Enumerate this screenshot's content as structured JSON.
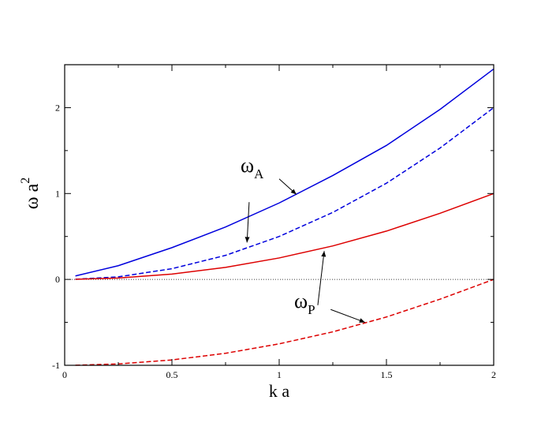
{
  "chart_data": {
    "type": "line",
    "title": "",
    "xlabel": "k a",
    "ylabel": {
      "main": "ω a",
      "sup": "2"
    },
    "xlim": [
      0,
      2
    ],
    "ylim": [
      -1,
      2.5
    ],
    "x_ticks": [
      {
        "value": 0,
        "label": "0"
      },
      {
        "value": 0.5,
        "label": "0.5"
      },
      {
        "value": 1,
        "label": "1"
      },
      {
        "value": 1.5,
        "label": "1.5"
      },
      {
        "value": 2,
        "label": "2"
      }
    ],
    "y_ticks": [
      {
        "value": -1,
        "label": "-1"
      },
      {
        "value": 0,
        "label": "0"
      },
      {
        "value": 1,
        "label": "1"
      },
      {
        "value": 2,
        "label": "2"
      }
    ],
    "x_minor_step": 0.25,
    "y_minor_step": 0.5,
    "grid": false,
    "legend": "none",
    "series": [
      {
        "color": "#0000dd",
        "dash": false,
        "x": [
          0.05,
          0.25,
          0.5,
          0.75,
          1.0,
          1.25,
          1.5,
          1.75,
          2.0
        ],
        "y": [
          0.04,
          0.16,
          0.37,
          0.61,
          0.89,
          1.21,
          1.56,
          1.98,
          2.45
        ]
      },
      {
        "color": "#0000dd",
        "dash": true,
        "x": [
          0.05,
          0.25,
          0.5,
          0.75,
          1.0,
          1.25,
          1.5,
          1.75,
          2.0
        ],
        "y": [
          0.002,
          0.03,
          0.125,
          0.28,
          0.5,
          0.78,
          1.12,
          1.53,
          2.0
        ]
      },
      {
        "color": "#dd0000",
        "dash": false,
        "x": [
          0.05,
          0.25,
          0.5,
          0.75,
          1.0,
          1.25,
          1.5,
          1.75,
          2.0
        ],
        "y": [
          0.001,
          0.016,
          0.0625,
          0.14,
          0.25,
          0.39,
          0.5625,
          0.77,
          1.0
        ]
      },
      {
        "color": "#dd0000",
        "dash": true,
        "x": [
          0.05,
          0.25,
          0.5,
          0.75,
          1.0,
          1.25,
          1.5,
          1.75,
          2.0
        ],
        "y": [
          -0.999,
          -0.984,
          -0.9375,
          -0.86,
          -0.75,
          -0.61,
          -0.4375,
          -0.23,
          0.0
        ]
      }
    ],
    "reference_line": {
      "y": 0,
      "style": "dotted"
    },
    "annotations": [
      {
        "text": "ω",
        "sub": "A",
        "x": 0.82,
        "y": 1.25,
        "arrows": [
          {
            "from": [
              1.0,
              1.17
            ],
            "to": [
              1.08,
              0.99
            ]
          },
          {
            "from": [
              0.86,
              0.9
            ],
            "to": [
              0.85,
              0.43
            ]
          }
        ]
      },
      {
        "text": "ω",
        "sub": "P",
        "x": 1.07,
        "y": -0.33,
        "arrows": [
          {
            "from": [
              1.18,
              -0.3
            ],
            "to": [
              1.21,
              0.33
            ]
          },
          {
            "from": [
              1.24,
              -0.35
            ],
            "to": [
              1.4,
              -0.5
            ]
          }
        ]
      }
    ]
  }
}
